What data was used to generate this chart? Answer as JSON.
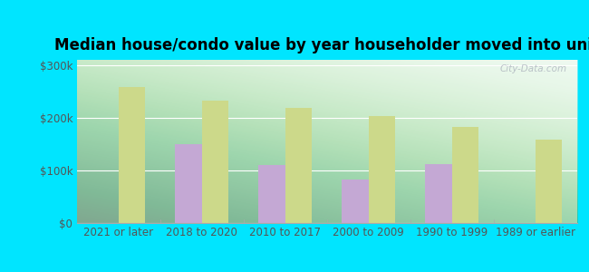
{
  "title": "Median house/condo value by year householder moved into unit",
  "categories": [
    "2021 or later",
    "2018 to 2020",
    "2010 to 2017",
    "2000 to 2009",
    "1990 to 1999",
    "1989 or earlier"
  ],
  "dannebrog": [
    null,
    150000,
    110000,
    82000,
    112000,
    null
  ],
  "nebraska": [
    258000,
    233000,
    218000,
    203000,
    183000,
    158000
  ],
  "dannebrog_color": "#c4a8d4",
  "nebraska_color": "#ccd98a",
  "background_outer": "#00e5ff",
  "ylim": [
    0,
    310000
  ],
  "yticks": [
    0,
    100000,
    200000,
    300000
  ],
  "ylabel_labels": [
    "$0",
    "$100k",
    "$200k",
    "$300k"
  ],
  "bar_width": 0.32,
  "title_fontsize": 12,
  "tick_fontsize": 8.5,
  "legend_fontsize": 9.5,
  "watermark": "City-Data.com"
}
